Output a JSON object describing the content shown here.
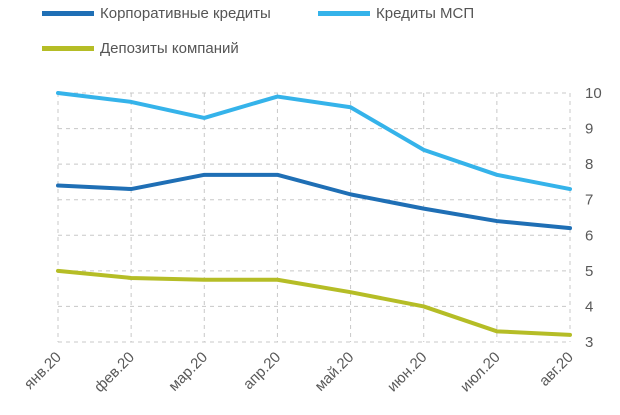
{
  "chart_data": {
    "type": "line",
    "categories": [
      "янв.20",
      "фев.20",
      "мар.20",
      "апр.20",
      "май.20",
      "июн.20",
      "июл.20",
      "авг.20"
    ],
    "series": [
      {
        "name": "Корпоративные кредиты",
        "color": "#1f6fb5",
        "values": [
          7.4,
          7.3,
          7.7,
          7.7,
          7.15,
          6.75,
          6.4,
          6.2
        ]
      },
      {
        "name": "Кредиты МСП",
        "color": "#35b3ea",
        "values": [
          10.0,
          9.75,
          9.3,
          9.9,
          9.6,
          8.4,
          7.7,
          7.3
        ]
      },
      {
        "name": "Депозиты компаний",
        "color": "#b5bd26",
        "values": [
          5.0,
          4.8,
          4.75,
          4.75,
          4.4,
          4.0,
          3.3,
          3.2
        ]
      }
    ],
    "y_ticks": [
      "3",
      "4",
      "5",
      "6",
      "7",
      "8",
      "9",
      "10"
    ],
    "ylim": [
      3,
      10
    ],
    "y_axis_side": "right",
    "grid": true,
    "legend_position": "top-left",
    "title": "",
    "xlabel": "",
    "ylabel": ""
  }
}
